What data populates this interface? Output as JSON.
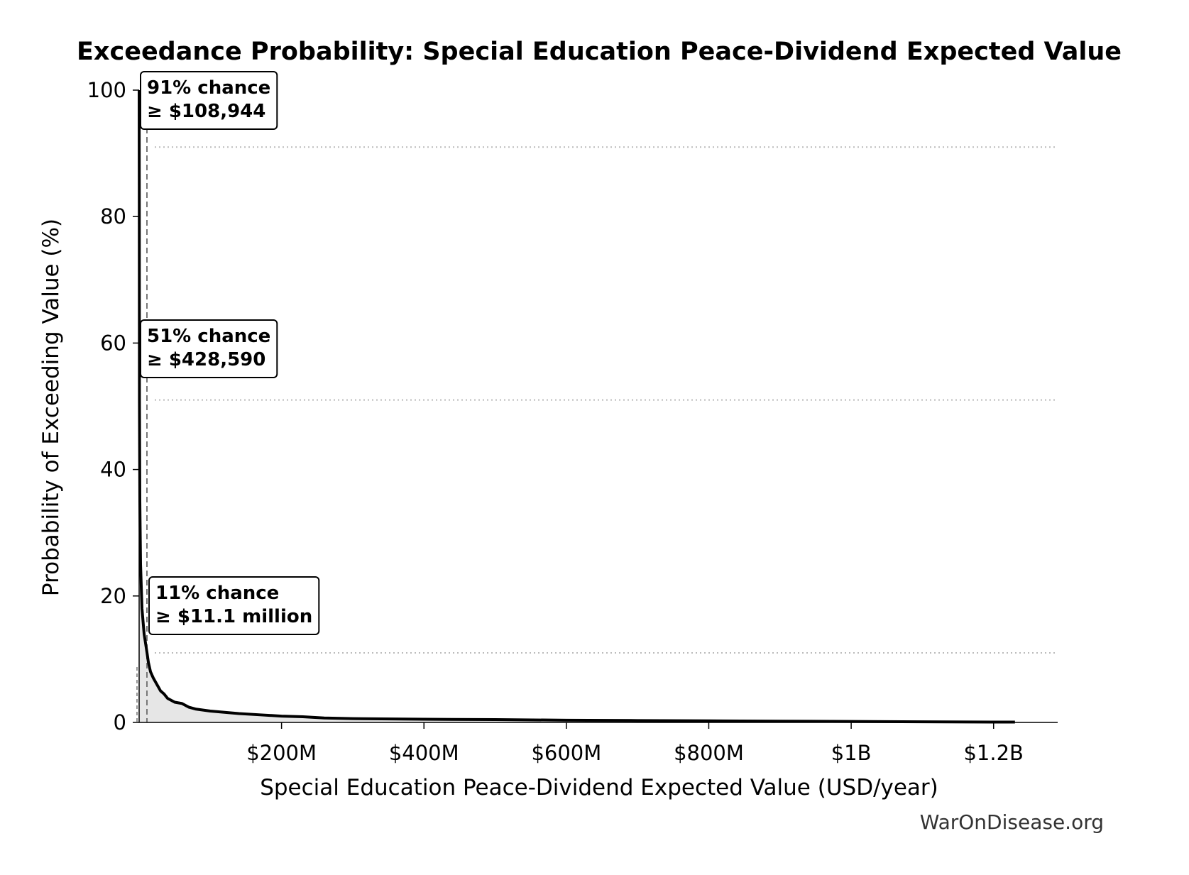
{
  "chart_data": {
    "type": "area",
    "title": "Exceedance Probability: Special Education Peace-Dividend Expected Value",
    "xlabel": "Special Education Peace-Dividend Expected Value (USD/year)",
    "ylabel": "Probability of Exceeding Value (%)",
    "xlim": [
      0,
      1290000000
    ],
    "ylim": [
      0,
      100
    ],
    "grid": false,
    "x_ticks": [
      {
        "value": 200000000,
        "label": "$200M"
      },
      {
        "value": 400000000,
        "label": "$400M"
      },
      {
        "value": 600000000,
        "label": "$600M"
      },
      {
        "value": 800000000,
        "label": "$800M"
      },
      {
        "value": 1000000000,
        "label": "$1B"
      },
      {
        "value": 1200000000,
        "label": "$1.2B"
      }
    ],
    "y_ticks": [
      {
        "value": 0,
        "label": "0"
      },
      {
        "value": 20,
        "label": "20"
      },
      {
        "value": 40,
        "label": "40"
      },
      {
        "value": 60,
        "label": "60"
      },
      {
        "value": 80,
        "label": "80"
      },
      {
        "value": 100,
        "label": "100"
      }
    ],
    "series": [
      {
        "x": [
          0,
          60000,
          108944,
          200000,
          428590,
          1000000,
          2000000,
          4000000,
          7000000,
          11100000,
          13000000,
          16000000,
          20000000,
          25000000,
          30000000,
          35000000,
          40000000,
          50000000,
          60000000,
          70000000,
          80000000,
          100000000,
          120000000,
          140000000,
          170000000,
          200000000,
          230000000,
          260000000,
          300000000,
          400000000,
          500000000,
          600000000,
          700000000,
          800000000,
          900000000,
          1000000000,
          1100000000,
          1230000000
        ],
        "y": [
          100,
          96,
          91,
          85,
          51,
          35,
          25,
          18,
          14,
          11,
          9.5,
          8,
          7,
          6,
          5,
          4.5,
          3.8,
          3.2,
          3,
          2.4,
          2.1,
          1.8,
          1.6,
          1.4,
          1.2,
          1.0,
          0.9,
          0.7,
          0.6,
          0.5,
          0.45,
          0.35,
          0.3,
          0.25,
          0.2,
          0.15,
          0.1,
          0.05
        ]
      }
    ],
    "annotations": [
      {
        "line1": "91% chance",
        "line2": "≥ $108,944",
        "prob": 91,
        "value": 108944
      },
      {
        "line1": "51% chance",
        "line2": "≥ $428,590",
        "prob": 51,
        "value": 428590
      },
      {
        "line1": "11% chance",
        "line2": "≥ $11.1 million",
        "prob": 11,
        "value": 11100000
      }
    ],
    "colors": {
      "line": "#000000",
      "fill": "#e6e6e6",
      "ref_line": "#bbbbbb",
      "marker_line": "#777777"
    }
  },
  "footer": "WarOnDisease.org"
}
